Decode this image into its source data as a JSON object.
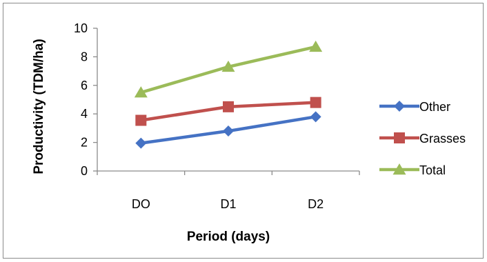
{
  "chart_data": {
    "type": "line",
    "title": "",
    "xlabel": "Period (days)",
    "ylabel": "Productivity (TDM/ha)",
    "categories": [
      "DO",
      "D1",
      "D2"
    ],
    "ylim": [
      0,
      10
    ],
    "yticks": [
      "0",
      "2",
      "4",
      "6",
      "8",
      "10"
    ],
    "grid": false,
    "legend_position": "right",
    "series": [
      {
        "name": "Other",
        "values": [
          1.95,
          2.8,
          3.8
        ],
        "color": "#4572C4",
        "marker": "diamond"
      },
      {
        "name": "Grasses",
        "values": [
          3.55,
          4.5,
          4.8
        ],
        "color": "#C0504D",
        "marker": "square"
      },
      {
        "name": "Total",
        "values": [
          5.5,
          7.3,
          8.7
        ],
        "color": "#9BBB59",
        "marker": "triangle"
      }
    ]
  }
}
